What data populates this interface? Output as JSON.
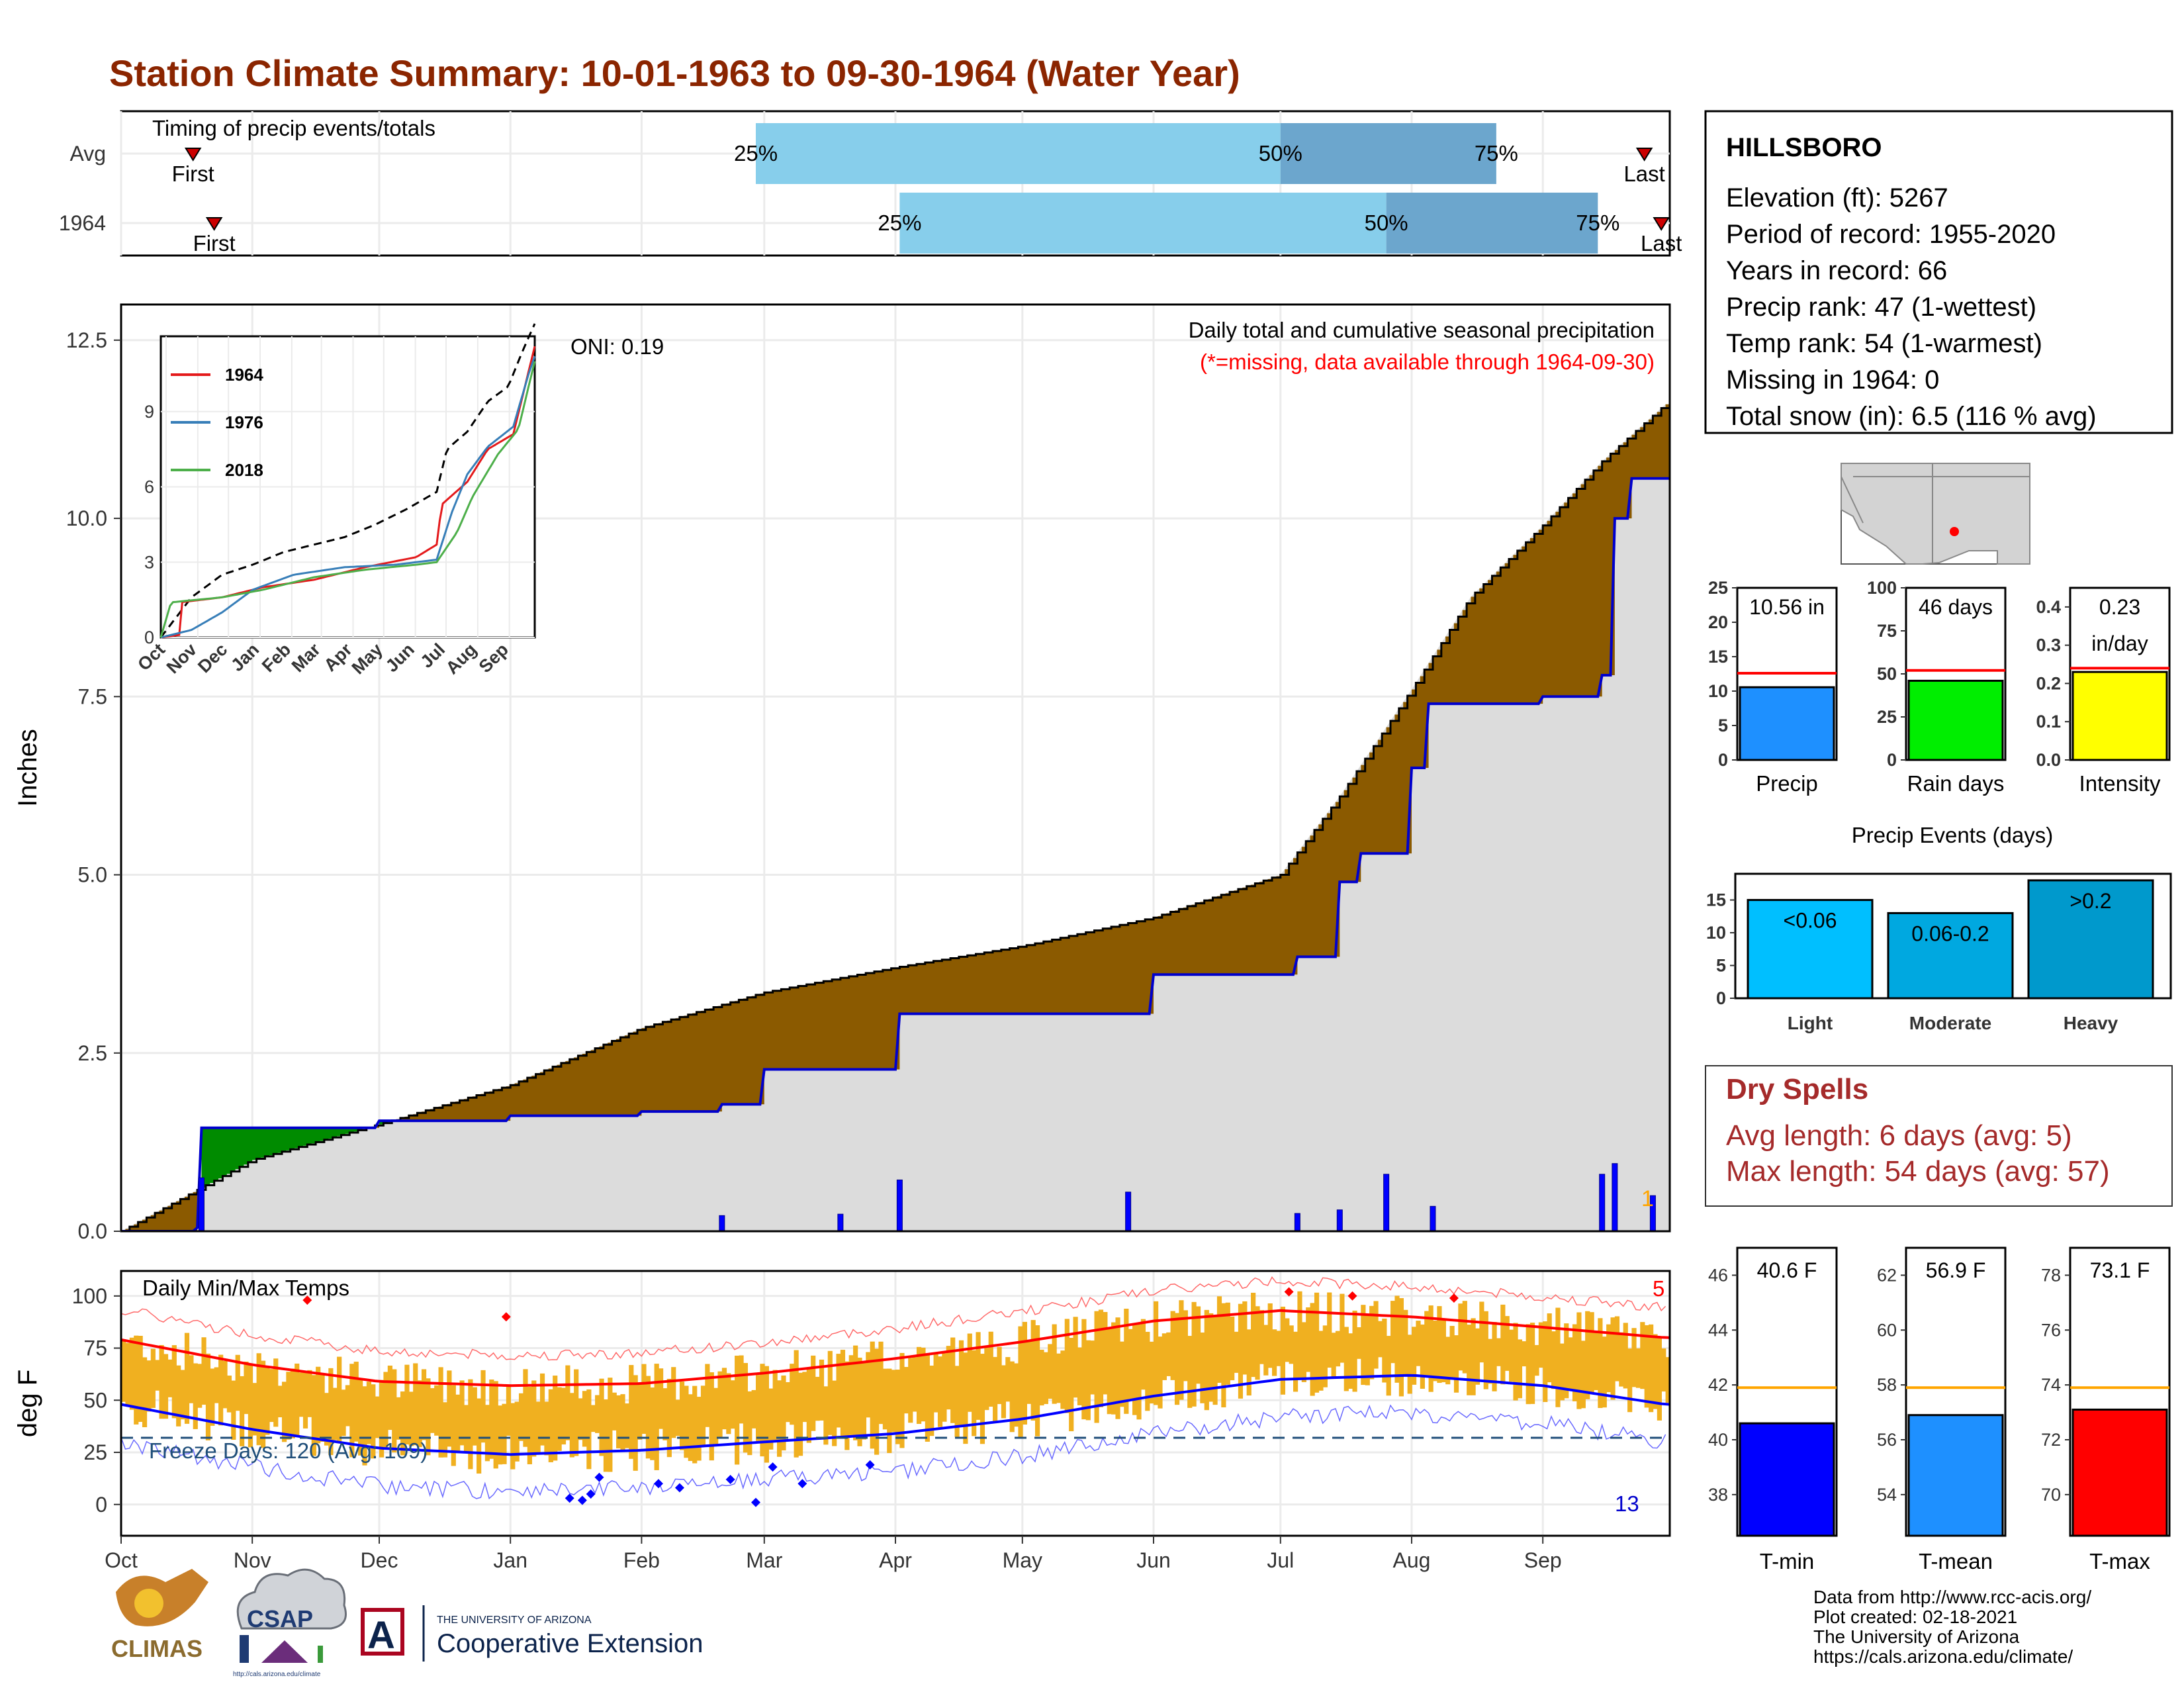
{
  "title": "Station Climate Summary: 10-01-1963 to 09-30-1964 (Water Year)",
  "colors": {
    "title": "#8b2500",
    "precip_fill": "#8b5a00",
    "precip_deficit": "#008b00",
    "avg_area": "#dcdcdc",
    "avg_line": "#0000cd",
    "bar_light": "#87ceeb",
    "bar_dark": "#6ca6cd",
    "temp_bars": "#f0b020",
    "tmax_avg": "#ff0000",
    "tmin_avg": "#0000ff"
  },
  "timing_panel": {
    "label": "Timing of precip events/totals",
    "row_labels": [
      "Avg",
      "1964"
    ],
    "first_label": "First",
    "last_label": "Last",
    "pct_labels": [
      "25%",
      "50%",
      "75%"
    ],
    "rows": [
      {
        "name": "Avg",
        "first": "Oct 18",
        "p25": "Feb 28",
        "p50": "Jul 1",
        "p75": "Aug 21",
        "last": "Sep 25"
      },
      {
        "name": "1964",
        "first": "Oct 23",
        "p25": "Apr 2",
        "p50": "Jul 26",
        "p75": "Sep 14",
        "last": "Sep 29"
      }
    ]
  },
  "precip_panel": {
    "ylabel": "Inches",
    "y_ticks": [
      "0.0",
      "2.5",
      "5.0",
      "7.5",
      "10.0",
      "12.5"
    ],
    "oni": "ONI: 0.19",
    "subtitle1": "Daily total and cumulative seasonal precipitation",
    "subtitle2": "(*=missing, data available through 1964-09-30)",
    "snow_count": "1",
    "inset": {
      "x_labels": [
        "Oct",
        "Nov",
        "Dec",
        "Jan",
        "Feb",
        "Mar",
        "Apr",
        "May",
        "Jun",
        "Jul",
        "Aug",
        "Sep"
      ],
      "y_labels": [
        "0",
        "3",
        "6",
        "9"
      ],
      "legend": [
        {
          "label": "1964",
          "color": "#e41a1c"
        },
        {
          "label": "1976",
          "color": "#377eb8"
        },
        {
          "label": "2018",
          "color": "#4daf4a"
        }
      ]
    }
  },
  "temp_panel": {
    "title": "Daily Min/Max Temps",
    "ylabel": "deg F",
    "y_ticks": [
      "0",
      "25",
      "50",
      "75",
      "100"
    ],
    "freeze_days": "Freeze Days: 120 (Avg: 109)",
    "hot_count": "5",
    "cold_count": "13"
  },
  "x_months": [
    "Oct",
    "Nov",
    "Dec",
    "Jan",
    "Feb",
    "Mar",
    "Apr",
    "May",
    "Jun",
    "Jul",
    "Aug",
    "Sep"
  ],
  "station": {
    "name": "HILLSBORO",
    "lines": [
      "Elevation (ft): 5267",
      "Period of record: 1955-2020",
      "Years in record: 66",
      "Precip rank: 47 (1-wettest)",
      "Temp rank: 54 (1-warmest)",
      "Missing in 1964: 0",
      "Total snow (in): 6.5 (116 % avg)"
    ]
  },
  "mini_bars": [
    {
      "label": "Precip",
      "value_label": "10.56 in",
      "ticks": [
        "0",
        "5",
        "10",
        "15",
        "20",
        "25"
      ],
      "max": 25,
      "value": 10.56,
      "avg": 12.6,
      "color": "#1e90ff"
    },
    {
      "label": "Rain days",
      "value_label": "46 days",
      "ticks": [
        "0",
        "25",
        "50",
        "75",
        "100"
      ],
      "max": 100,
      "value": 46,
      "avg": 52,
      "color": "#00ee00"
    },
    {
      "label": "Intensity",
      "value_label": "0.23\nin/day",
      "ticks": [
        "0.0",
        "0.1",
        "0.2",
        "0.3",
        "0.4"
      ],
      "max": 0.45,
      "value": 0.23,
      "avg": 0.24,
      "color": "#ffff00"
    }
  ],
  "precip_events": {
    "title": "Precip Events (days)",
    "ticks": [
      "0",
      "5",
      "10",
      "15"
    ],
    "bars": [
      {
        "label": "Light",
        "inner": "<0.06",
        "value": 15,
        "color": "#00bfff"
      },
      {
        "label": "Moderate",
        "inner": "0.06-0.2",
        "value": 13,
        "color": "#00a8e0"
      },
      {
        "label": "Heavy",
        "inner": ">0.2",
        "value": 18,
        "color": "#0099cc"
      }
    ]
  },
  "dry_spells": {
    "title": "Dry Spells",
    "avg_line": "Avg length: 6 days (avg: 5)",
    "max_line": "Max length: 54 days (avg: 57)"
  },
  "temp_bars": [
    {
      "label": "T-min",
      "value_label": "40.6 F",
      "ticks": [
        "38",
        "40",
        "42",
        "44",
        "46"
      ],
      "min": 36.5,
      "max": 47,
      "value": 40.6,
      "avg": 41.9,
      "color": "#0000ff"
    },
    {
      "label": "T-mean",
      "value_label": "56.9 F",
      "ticks": [
        "54",
        "56",
        "58",
        "60",
        "62"
      ],
      "min": 52.5,
      "max": 63,
      "value": 56.9,
      "avg": 57.9,
      "color": "#1e90ff"
    },
    {
      "label": "T-max",
      "value_label": "73.1 F",
      "ticks": [
        "70",
        "72",
        "74",
        "76",
        "78"
      ],
      "min": 68.5,
      "max": 79,
      "value": 73.1,
      "avg": 73.9,
      "color": "#ff0000"
    }
  ],
  "footer": {
    "lines": [
      "Data from http://www.rcc-acis.org/",
      "Plot created: 02-18-2021",
      "The University of Arizona",
      "https://cals.arizona.edu/climate/"
    ],
    "logo_climas": "CLIMAS",
    "logo_csap": "CSAP",
    "logo_csap_url": "http://cals.arizona.edu/climate",
    "logo_ua_small": "THE UNIVERSITY OF ARIZONA",
    "logo_ua_big": "Cooperative Extension"
  },
  "chart_data": {
    "type": "area",
    "title": "Station Climate Summary: 10-01-1963 to 09-30-1964 (Water Year)",
    "ylabel": "Inches",
    "ylim": [
      0,
      13
    ],
    "series": [
      {
        "name": "cumulative average",
        "x": [
          "Oct 1",
          "Nov 1",
          "Dec 1",
          "Jan 1",
          "Feb 1",
          "Mar 1",
          "Apr 1",
          "May 1",
          "Jun 1",
          "Jul 1",
          "Jul 15",
          "Aug 1",
          "Aug 15",
          "Sep 1",
          "Sep 15",
          "Sep 30"
        ],
        "values": [
          0.0,
          1.0,
          1.5,
          2.05,
          2.85,
          3.35,
          3.7,
          4.0,
          4.4,
          5.0,
          6.1,
          7.6,
          8.9,
          9.9,
          10.8,
          11.6
        ]
      },
      {
        "name": "cumulative 1964",
        "x": [
          "Oct 1",
          "Oct 19",
          "Oct 20",
          "Dec 1",
          "Jan 1",
          "Feb 1",
          "Feb 20",
          "Mar 1",
          "Apr 1",
          "Apr 2",
          "May 1",
          "Jun 1",
          "Jul 1",
          "Jul 5",
          "Jul 15",
          "Jul 20",
          "Aug 1",
          "Aug 5",
          "Sep 1",
          "Sep 15",
          "Sep 18",
          "Sep 22",
          "Sep 30"
        ],
        "values": [
          0.0,
          0.05,
          1.45,
          1.55,
          1.62,
          1.68,
          1.78,
          2.27,
          2.27,
          3.05,
          3.05,
          3.6,
          3.6,
          3.85,
          4.9,
          5.3,
          6.5,
          7.4,
          7.5,
          7.8,
          10.0,
          10.56,
          10.56
        ]
      }
    ],
    "daily_precip": [
      {
        "date": "Oct 20",
        "value": 0.75
      },
      {
        "date": "Feb 20",
        "value": 0.22
      },
      {
        "date": "Mar 19",
        "value": 0.24
      },
      {
        "date": "Apr 2",
        "value": 0.72
      },
      {
        "date": "May 26",
        "value": 0.55
      },
      {
        "date": "Jul 5",
        "value": 0.25
      },
      {
        "date": "Jul 15",
        "value": 0.3
      },
      {
        "date": "Jul 26",
        "value": 0.8
      },
      {
        "date": "Aug 6",
        "value": 0.35
      },
      {
        "date": "Sep 15",
        "value": 0.8
      },
      {
        "date": "Sep 18",
        "value": 0.95
      },
      {
        "date": "Sep 27",
        "value": 0.5
      }
    ],
    "temperature": {
      "ylim": [
        -15,
        112
      ],
      "avg_max": {
        "x": [
          "Oct 1",
          "Nov 1",
          "Dec 1",
          "Jan 1",
          "Feb 1",
          "Mar 1",
          "Apr 1",
          "May 1",
          "Jun 1",
          "Jul 1",
          "Aug 1",
          "Sep 1",
          "Sep 30"
        ],
        "values": [
          79,
          67,
          59,
          57,
          58,
          63,
          70,
          78,
          88,
          93,
          90,
          85,
          80
        ]
      },
      "avg_min": {
        "x": [
          "Oct 1",
          "Nov 1",
          "Dec 1",
          "Jan 1",
          "Feb 1",
          "Mar 1",
          "Apr 1",
          "May 1",
          "Jun 1",
          "Jul 1",
          "Aug 1",
          "Sep 1",
          "Sep 30"
        ],
        "values": [
          48,
          36,
          27,
          24,
          26,
          30,
          34,
          41,
          52,
          60,
          62,
          57,
          48
        ]
      },
      "freeze_line": 32
    }
  }
}
